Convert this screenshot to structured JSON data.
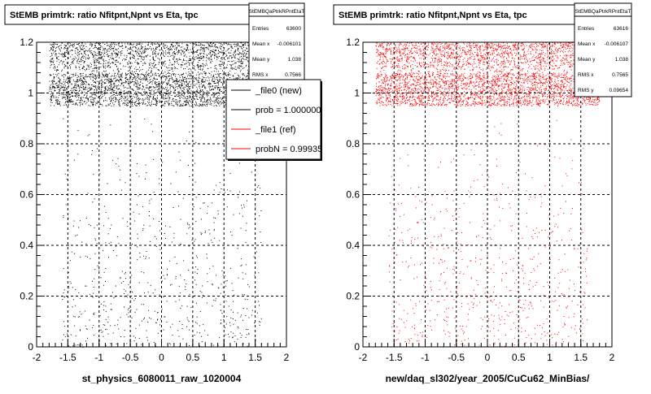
{
  "colors": {
    "background": "#ffffff",
    "new_markers": "#000000",
    "ref_markers": "#ff0000",
    "grid": "#000000",
    "frame": "#000000"
  },
  "footer_text": "",
  "chart_data": [
    {
      "type": "scatter",
      "title": "StEMB primtrk: ratio Nfitpnt,Npnt vs Eta, tpc",
      "xlabel": "st_physics_6080011_raw_1020004",
      "ylabel": "",
      "xlim": [
        -2,
        2
      ],
      "ylim": [
        0,
        1.2
      ],
      "x_ticks": [
        "-2",
        "-1.5",
        "-1",
        "-0.5",
        "0",
        "0.5",
        "1",
        "1.5",
        "2"
      ],
      "y_ticks": [
        "0",
        "0.2",
        "0.4",
        "0.6",
        "0.8",
        "1",
        "1.2"
      ],
      "grid": true,
      "marker_color": "#000000",
      "stats_box": {
        "name": "StEMBQaPtrkRPntEtaT",
        "rows": [
          {
            "label": "Entries",
            "value": "63600"
          },
          {
            "label": "Mean x",
            "value": "-0.006101"
          },
          {
            "label": "Mean y",
            "value": "1.038"
          },
          {
            "label": "RMS x",
            "value": "0.7566"
          }
        ]
      },
      "legend": {
        "placement": "right",
        "entries": [
          {
            "label": "_file0 (new)",
            "color": "#000000"
          },
          {
            "label": "prob = 1.000000",
            "color": "#000000"
          },
          {
            "label": "_file1 (ref)",
            "color": "#ff0000"
          },
          {
            "label": "probN = 0.99935",
            "color": "#ff0000"
          }
        ]
      },
      "distribution": {
        "x_range": [
          -1.8,
          1.8
        ],
        "dense_band_y": [
          0.95,
          1.08
        ],
        "upper_band_y": [
          1.08,
          1.2
        ],
        "sparse_y": [
          0.0,
          0.95
        ]
      }
    },
    {
      "type": "scatter",
      "title": "StEMB primtrk: ratio Nfitpnt,Npnt vs Eta, tpc",
      "xlabel": "new/daq_sl302/year_2005/CuCu62_MinBias/",
      "ylabel": "",
      "xlim": [
        -2,
        2
      ],
      "ylim": [
        0,
        1.2
      ],
      "x_ticks": [
        "-2",
        "-1.5",
        "-1",
        "-0.5",
        "0",
        "0.5",
        "1",
        "1.5",
        "2"
      ],
      "y_ticks": [
        "0",
        "0.2",
        "0.4",
        "0.6",
        "0.8",
        "1",
        "1.2"
      ],
      "grid": true,
      "marker_color": "#ff0000",
      "stats_box": {
        "name": "StEMBQaPtrkRPntEtaT",
        "rows": [
          {
            "label": "Entries",
            "value": "63616"
          },
          {
            "label": "Mean x",
            "value": "-0.006107"
          },
          {
            "label": "Mean y",
            "value": "1.038"
          },
          {
            "label": "RMS x",
            "value": "0.7565"
          },
          {
            "label": "RMS y",
            "value": "0.09654"
          }
        ]
      },
      "distribution": {
        "x_range": [
          -1.8,
          1.8
        ],
        "dense_band_y": [
          0.95,
          1.08
        ],
        "upper_band_y": [
          1.08,
          1.2
        ],
        "sparse_y": [
          0.0,
          0.95
        ]
      }
    }
  ]
}
